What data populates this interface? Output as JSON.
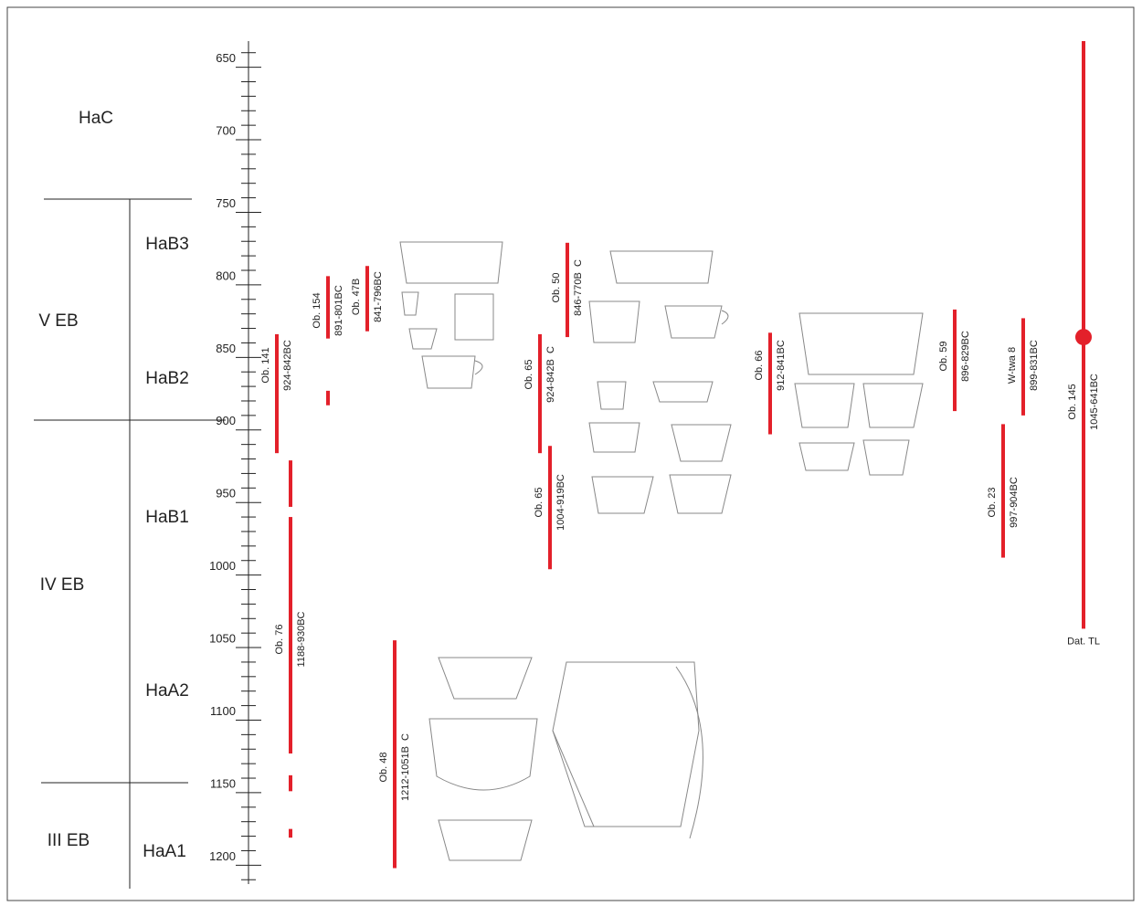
{
  "chart_data": {
    "type": "timeline",
    "ylim": [
      632,
      1213
    ],
    "yticks": [
      650,
      700,
      750,
      800,
      850,
      900,
      950,
      1000,
      1050,
      1100,
      1150,
      1200
    ],
    "minor_yticks": [
      640,
      660,
      670,
      680,
      690,
      710,
      720,
      730,
      740,
      760,
      770,
      780,
      790,
      810,
      820,
      830,
      840,
      860,
      870,
      880,
      890,
      910,
      920,
      930,
      940,
      960,
      970,
      980,
      990,
      1010,
      1020,
      1030,
      1040,
      1060,
      1070,
      1080,
      1090,
      1110,
      1120,
      1130,
      1140,
      1160,
      1170,
      1180,
      1190,
      1210
    ],
    "phases": [
      "HaC",
      "HaB3",
      "HaB2",
      "HaB1",
      "HaA2",
      "HaA1"
    ],
    "stages": [
      "V EB",
      "IV EB",
      "III EB"
    ],
    "color": "#e3202a",
    "samples": [
      {
        "name": "Ob. 141",
        "range": "924-842BC",
        "segments": [
          [
            834,
            916
          ]
        ]
      },
      {
        "name": "Ob. 154",
        "range": "891-801BC",
        "segments": [
          [
            794,
            837
          ],
          [
            873,
            883
          ]
        ]
      },
      {
        "name": "Ob. 47B",
        "range": "841-796BC",
        "segments": [
          [
            787,
            832
          ]
        ]
      },
      {
        "name": "Ob. 50",
        "range": "846-770B  C",
        "segments": [
          [
            771,
            836
          ]
        ]
      },
      {
        "name": "Ob. 65",
        "range": "924-842B  C",
        "segments": [
          [
            834,
            916
          ]
        ]
      },
      {
        "name": "Ob. 65",
        "range": "1004-919BC",
        "segments": [
          [
            911,
            996
          ]
        ]
      },
      {
        "name": "Ob. 66",
        "range": "912-841BC",
        "segments": [
          [
            833,
            903
          ]
        ]
      },
      {
        "name": "Ob. 59",
        "range": "896-829BC",
        "segments": [
          [
            817,
            887
          ]
        ]
      },
      {
        "name": "W-twa 8",
        "range": "899-831BC",
        "segments": [
          [
            823,
            890
          ]
        ]
      },
      {
        "name": "Ob. 23",
        "range": "997-904BC",
        "segments": [
          [
            896,
            988
          ]
        ]
      },
      {
        "name": "Ob. 145",
        "range": "1045-641BC",
        "segments": [
          [
            632,
            1037
          ]
        ],
        "dot": 836,
        "note": "Dat. TL"
      },
      {
        "name": "Ob. 76",
        "range": "1188-930BC",
        "segments": [
          [
            921,
            953
          ],
          [
            960,
            1123
          ],
          [
            1138,
            1149
          ],
          [
            1175,
            1181
          ]
        ]
      },
      {
        "name": "Ob. 48",
        "range": "1212-1051B  C",
        "segments": [
          [
            1045,
            1202
          ]
        ]
      }
    ]
  }
}
